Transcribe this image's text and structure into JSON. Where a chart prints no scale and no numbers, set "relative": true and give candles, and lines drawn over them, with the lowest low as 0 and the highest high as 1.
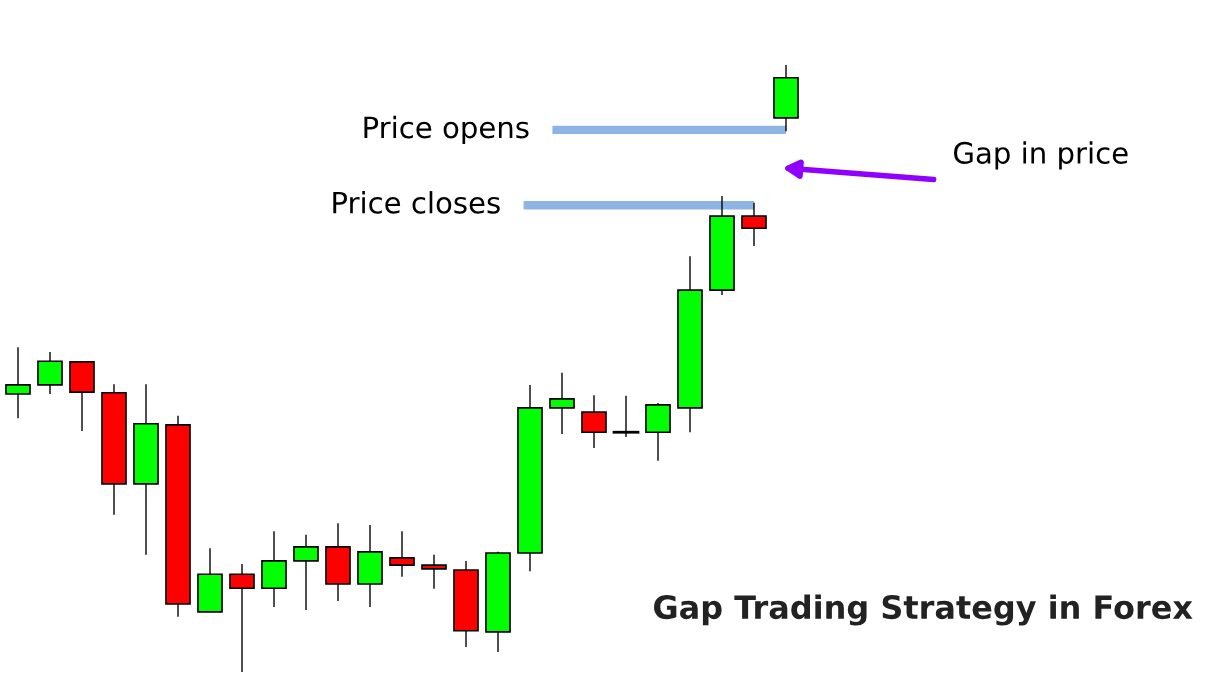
{
  "chart_data": {
    "type": "candlestick",
    "title": "Gap Trading Strategy in Forex",
    "relative": true,
    "categories": [
      null,
      null,
      null,
      null,
      null,
      null,
      null,
      null,
      null,
      null,
      null,
      null,
      null,
      null,
      null,
      null,
      null,
      null,
      null,
      null,
      null,
      null,
      null,
      null,
      null
    ],
    "ohlc": [
      [
        0.458,
        0.535,
        0.418,
        0.473
      ],
      [
        0.473,
        0.527,
        0.458,
        0.512
      ],
      [
        0.511,
        0.512,
        0.397,
        0.461
      ],
      [
        0.46,
        0.474,
        0.259,
        0.31
      ],
      [
        0.31,
        0.474,
        0.193,
        0.409
      ],
      [
        0.407,
        0.422,
        0.091,
        0.112
      ],
      [
        0.099,
        0.204,
        0.099,
        0.161
      ],
      [
        0.161,
        0.178,
        0,
        0.138
      ],
      [
        0.138,
        0.232,
        0.107,
        0.183
      ],
      [
        0.183,
        0.226,
        0.102,
        0.206
      ],
      [
        0.206,
        0.245,
        0.117,
        0.145
      ],
      [
        0.145,
        0.242,
        0.107,
        0.198
      ],
      [
        0.188,
        0.232,
        0.157,
        0.176
      ],
      [
        0.176,
        0.193,
        0.137,
        0.17
      ],
      [
        0.168,
        0.183,
        0.041,
        0.068
      ],
      [
        0.066,
        0.198,
        0.033,
        0.196
      ],
      [
        0.196,
        0.473,
        0.166,
        0.435
      ],
      [
        0.435,
        0.493,
        0.392,
        0.45
      ],
      [
        0.428,
        0.456,
        0.369,
        0.395
      ],
      [
        0.395,
        0.455,
        0.387,
        0.395
      ],
      [
        0.395,
        0.443,
        0.348,
        0.44
      ],
      [
        0.435,
        0.685,
        0.395,
        0.629
      ],
      [
        0.629,
        0.784,
        0.621,
        0.751
      ],
      [
        0.751,
        0.773,
        0.702,
        0.731
      ],
      [
        0.913,
        1,
        0.891,
        0.979
      ]
    ],
    "colors": [
      "#00ff00",
      "#00ff00",
      "#ff0000",
      "#ff0000",
      "#00ff00",
      "#ff0000",
      "#00ff00",
      "#ff0000",
      "#00ff00",
      "#00ff00",
      "#ff0000",
      "#00ff00",
      "#ff0000",
      "#ff0000",
      "#ff0000",
      "#00ff00",
      "#00ff00",
      "#00ff00",
      "#ff0000",
      "#000000",
      "#00ff00",
      "#00ff00",
      "#00ff00",
      "#ff0000",
      "#00ff00"
    ],
    "annotations": [
      "Price opens",
      "Price closes",
      "Gap in price"
    ]
  }
}
